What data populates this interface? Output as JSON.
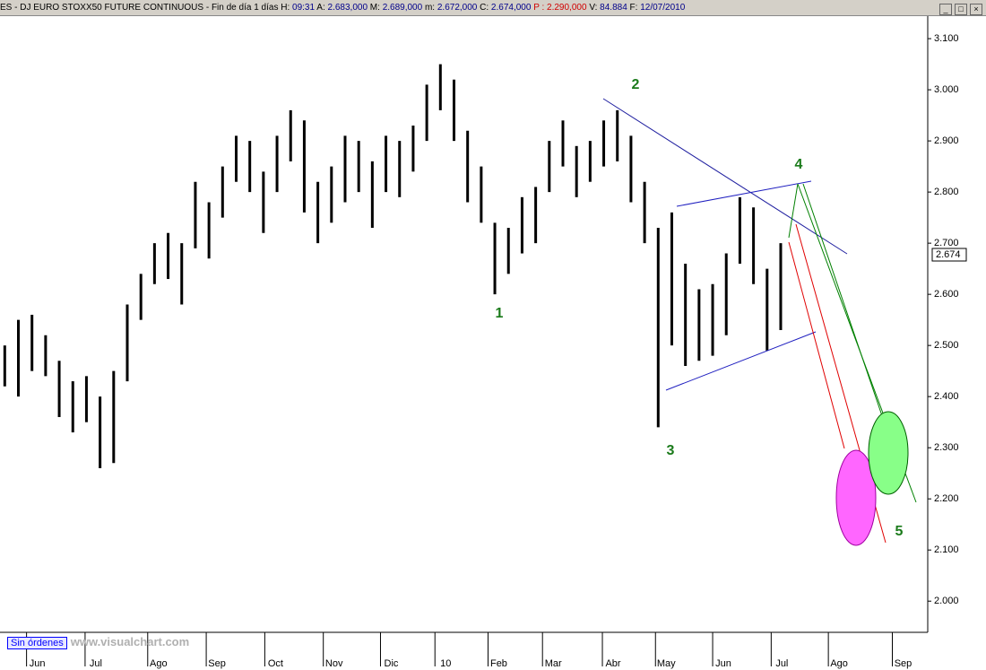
{
  "header": {
    "parts": [
      {
        "label": "ES - DJ EURO STOXX50 FUTURE CONTINUOUS - Fin de día 1 días"
      },
      {
        "label": "H:",
        "value": "09:31"
      },
      {
        "label": "A:",
        "value": "2.683,000"
      },
      {
        "label": "M:",
        "value": "2.689,000"
      },
      {
        "label": "m:",
        "value": "2.672,000"
      },
      {
        "label": "C:",
        "value": "2.674,000"
      },
      {
        "label": "P :",
        "value": "2.290,000"
      },
      {
        "label": "V:",
        "value": "84.884"
      },
      {
        "label": "F:",
        "value": "12/07/2010"
      }
    ]
  },
  "footer": {
    "orders": "Sin órdenes",
    "site": "www.visualchart.com"
  },
  "last_price_label": "2.674",
  "wave_labels": [
    "1",
    "2",
    "3",
    "4",
    "5"
  ],
  "chart_data": {
    "type": "ohlc",
    "color": "#000000",
    "x": [
      0,
      1,
      2,
      3,
      4,
      5,
      6,
      7,
      8,
      9,
      10,
      11,
      12,
      13,
      14,
      15,
      16,
      17,
      18,
      19,
      20,
      21,
      22,
      23,
      24,
      25,
      26,
      27,
      28,
      29,
      30,
      31,
      32,
      33,
      34,
      35,
      36,
      37,
      38,
      39,
      40,
      41,
      42,
      43,
      44,
      45,
      46,
      47,
      48,
      49,
      50,
      51,
      52,
      53,
      54,
      55,
      56,
      57
    ],
    "high": [
      2.5,
      2.55,
      2.56,
      2.52,
      2.47,
      2.43,
      2.44,
      2.4,
      2.45,
      2.58,
      2.64,
      2.7,
      2.72,
      2.7,
      2.82,
      2.78,
      2.85,
      2.91,
      2.9,
      2.84,
      2.91,
      2.96,
      2.94,
      2.82,
      2.85,
      2.91,
      2.9,
      2.86,
      2.91,
      2.9,
      2.93,
      3.01,
      3.05,
      3.02,
      2.92,
      2.85,
      2.74,
      2.73,
      2.79,
      2.81,
      2.9,
      2.94,
      2.89,
      2.9,
      2.94,
      2.96,
      2.91,
      2.82,
      2.73,
      2.76,
      2.66,
      2.61,
      2.62,
      2.68,
      2.79,
      2.77,
      2.65,
      2.7
    ],
    "low": [
      2.42,
      2.4,
      2.45,
      2.44,
      2.36,
      2.33,
      2.35,
      2.26,
      2.27,
      2.43,
      2.55,
      2.62,
      2.63,
      2.58,
      2.69,
      2.67,
      2.75,
      2.82,
      2.8,
      2.72,
      2.8,
      2.86,
      2.76,
      2.7,
      2.74,
      2.78,
      2.8,
      2.73,
      2.8,
      2.79,
      2.84,
      2.9,
      2.96,
      2.9,
      2.78,
      2.74,
      2.6,
      2.64,
      2.68,
      2.7,
      2.8,
      2.85,
      2.79,
      2.82,
      2.85,
      2.86,
      2.78,
      2.7,
      2.34,
      2.5,
      2.46,
      2.47,
      2.48,
      2.52,
      2.66,
      2.62,
      2.49,
      2.53
    ],
    "xlim": [
      -0.35,
      67.8
    ],
    "xticks": [
      {
        "value": 1.6,
        "label": "Jun"
      },
      {
        "value": 5.9,
        "label": "Jul"
      },
      {
        "value": 10.5,
        "label": "Ago"
      },
      {
        "value": 14.8,
        "label": "Sep"
      },
      {
        "value": 19.1,
        "label": "Oct"
      },
      {
        "value": 23.4,
        "label": "Nov"
      },
      {
        "value": 27.6,
        "label": "Dic"
      },
      {
        "value": 31.6,
        "label": "10"
      },
      {
        "value": 35.5,
        "label": "Feb"
      },
      {
        "value": 39.5,
        "label": "Mar"
      },
      {
        "value": 43.9,
        "label": "Abr"
      },
      {
        "value": 47.8,
        "label": "May"
      },
      {
        "value": 52,
        "label": "Jun"
      },
      {
        "value": 56.3,
        "label": "Jul"
      },
      {
        "value": 60.5,
        "label": "Ago"
      },
      {
        "value": 65.2,
        "label": "Sep"
      }
    ],
    "ylim": [
      1.939,
      3.144
    ],
    "yticks": [
      {
        "value": 2.0,
        "label": "2.000"
      },
      {
        "value": 2.1,
        "label": "2.100"
      },
      {
        "value": 2.2,
        "label": "2.200"
      },
      {
        "value": 2.3,
        "label": "2.300"
      },
      {
        "value": 2.4,
        "label": "2.400"
      },
      {
        "value": 2.5,
        "label": "2.500"
      },
      {
        "value": 2.6,
        "label": "2.600"
      },
      {
        "value": 2.7,
        "label": "2.700"
      },
      {
        "value": 2.8,
        "label": "2.800"
      },
      {
        "value": 2.9,
        "label": "2.900"
      },
      {
        "value": 3.0,
        "label": "3.000"
      },
      {
        "value": 3.1,
        "label": "3.100"
      }
    ]
  }
}
